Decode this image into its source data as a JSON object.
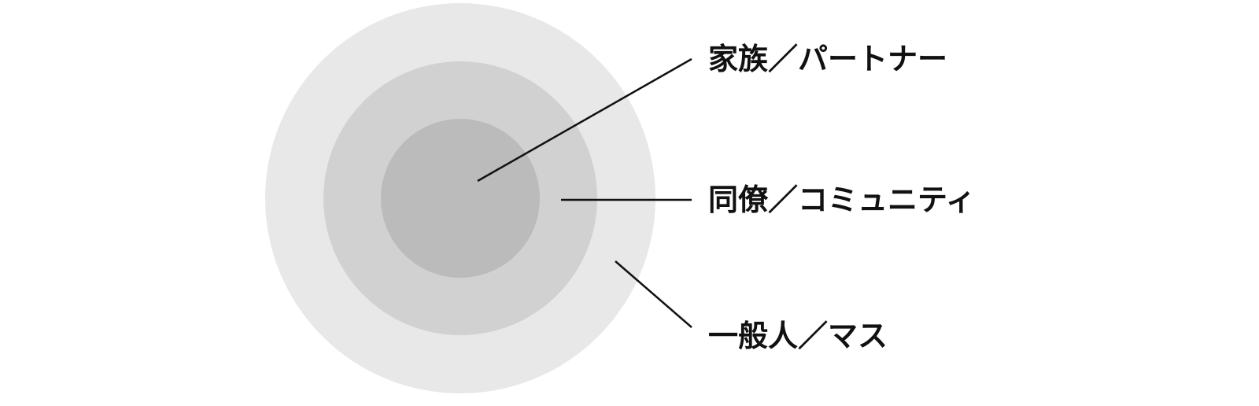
{
  "diagram": {
    "type": "concentric-circles",
    "colors": {
      "outer": "#e8e8e8",
      "middle": "#d1d1d1",
      "inner": "#bbbbbb",
      "line": "#111111",
      "text": "#111111"
    },
    "labels": {
      "inner": "家族／パートナー",
      "middle": "同僚／コミュニティ",
      "outer": "一般人／マス"
    }
  }
}
